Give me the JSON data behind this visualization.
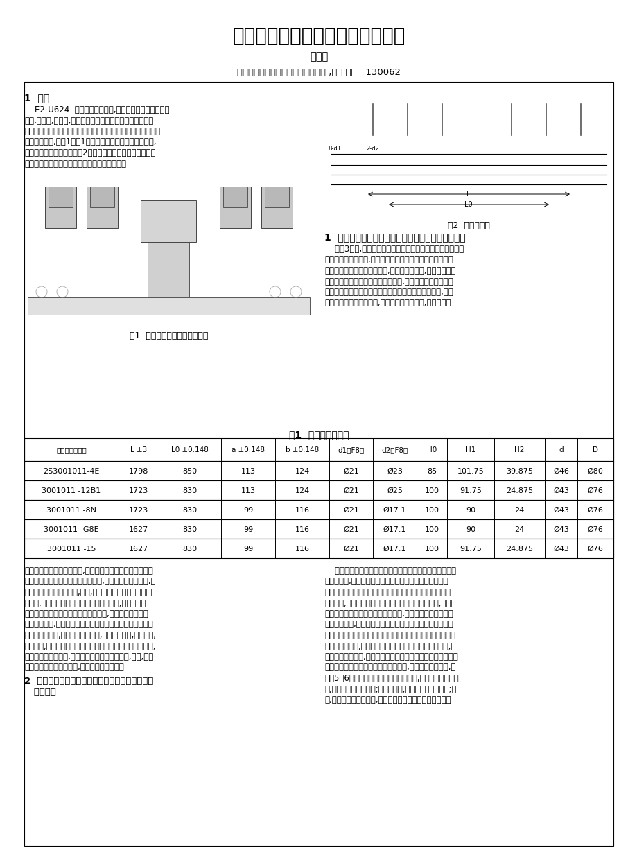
{
  "title": "大型组合机床总装精调方法的改进",
  "author": "吕昌金",
  "affiliation": "长春一汽装备技术开发制造有限公司 ,吉林 长春   130062",
  "background_color": "#ffffff",
  "text_color": "#000000",
  "section1_title": "1  前言",
  "fig1_caption": "图1  前轴三面立式钻铰组合机床",
  "fig2_caption": "图2  加工示意图",
  "section_right1_title": "1  滑座侧面与自定心对中装置相连接尺寸误差的解决",
  "table_title": "表1  被加工零件尺寸",
  "table_headers": [
    "被加工零件图号",
    "L ±3",
    "L0 ±0.148",
    "a ±0.148",
    "b ±0.148",
    "d1（F8）",
    "d2（F8）",
    "H0",
    "H1",
    "H2",
    "d",
    "D"
  ],
  "table_data": [
    [
      "2S3001011-4E",
      "1798",
      "850",
      "113",
      "124",
      "Ø21",
      "Ø23",
      "85",
      "101.75",
      "39.875",
      "Ø46",
      "Ø80"
    ],
    [
      "3001011 -12B1",
      "1723",
      "830",
      "113",
      "124",
      "Ø21",
      "Ø25",
      "100",
      "91.75",
      "24.875",
      "Ø43",
      "Ø76"
    ],
    [
      "3001011 -8N",
      "1723",
      "830",
      "99",
      "116",
      "Ø21",
      "Ø17.1",
      "100",
      "90",
      "24",
      "Ø43",
      "Ø76"
    ],
    [
      "3001011 -G8E",
      "1627",
      "830",
      "99",
      "116",
      "Ø21",
      "Ø17.1",
      "100",
      "90",
      "24",
      "Ø43",
      "Ø76"
    ],
    [
      "3001011 -15",
      "1627",
      "830",
      "99",
      "116",
      "Ø21",
      "Ø17.1",
      "100",
      "91.75",
      "24.875",
      "Ø43",
      "Ø76"
    ]
  ],
  "left_para1_lines": [
    "    E2-U624  汽车前轴钻铰机床,是集团公司为了争取卡车",
    "市场,上能力,上水平,上质量的关键设备。该设备用于加工五",
    "平柴、六平柴、九平柴三种载重卡车五个型号的前轴拳部主销孔",
    "钻削组合机床,见图1及表1。该机床为多品种前轴加工机床,",
    "加工品种和加工示意图如图2。下面仅就在装配调试这台机床",
    "时所遇到的技术问题以及解决方案做一下叙述。"
  ],
  "right_para1_lines": [
    "    如图3所示,对中装置为油缸、齿轮、齿条、齿轮、齿条的结",
    "构。分析结构图发现,对中装置齿条轴左右支架结合面与滑座",
    "侧面之间没有设计出调整环节,由于误差的积累,仅靠加工无法",
    "保证左右支架齿条安装在滑座侧面后,支架齿条轴孔之间的同",
    "轴度。左右支架之间支承孔不同轴将会产生齿条轴别劲,轻则",
    "使齿条和齿轮运转不灵活,降低零件的使用寿命,重则无法装"
  ],
  "bottom_left_lines": [
    "配。为了解决这一技术问题,我采用了在左右支架结合面与滑",
    "座侧面之间加装调整垫的方法。首先,找正左右滑座导轨面,使",
    "其平行共面并将滑座固定,之后,将齿条左右支架都固定在安装",
    "位置上,初步测量左右支架齿条轴孔的等高度,对有修磨量",
    "的调整垫在高度较低的支架与滑座之间,精测左右支架齿条",
    "轴孔的等高度,用精磨垫片的方法保证等高。当齿条轴在支座",
    "中与齿轮啮合后,用手转动灵活自如,没有别劲现象,紧固螺钉,",
    "打定位销,对中装置调整工作即告完成。根据现场的实际情况,",
    "调整垫仅需一件即可,右支架到结合面的尺寸较小,因此,调整",
    "垫放在右侧。用上述方法,调整精度非常可靠。"
  ],
  "section2_title_line1": "2  精镗头主轴中心线对样件孔中心线同轴度调整方",
  "section2_title_line2": "   法的改进",
  "bottom_right_lines": [
    "    镗削头主轴轴线对样件孔轴线的同轴度是该机床的重要精",
    "度考核项目,此项精度直接影响被加工零件的精度。由于该",
    "机床采用带内冷却的硬质合金可转位浅钻对前轴拳部主销孔",
    "进行加工,而且由于为后面的精加工工序所留余量很小,为了保",
    "证工件拳部钻孔后的精加工余量均匀,这项精度的找正必须给",
    "予足够的重视,它是机床的必保精度。机床的原设计对于机床",
    "的装配工艺考虑欠缺。设计者原来的本意是通过移动水平滑台",
    "的方法进行调整,这种方法在实际操作中却很难实现。第一,这",
    "组部件的重量很大,水平滑台上放有斜立柱、平衡重、斜立柱上",
    "的滑较以及滑较上面的镗削头、减速器,一个大功率的电机,重",
    "量达5～6吨。由于斜立柱部件的重心偏前,固定用的螺栓不紧",
    "固,部件就有倾斜的趋向;如果紧固了,整个部件就无法移动;第",
    "二,两对中滑台必须平行,否则对中后的前轴就会产生扭曲。"
  ]
}
